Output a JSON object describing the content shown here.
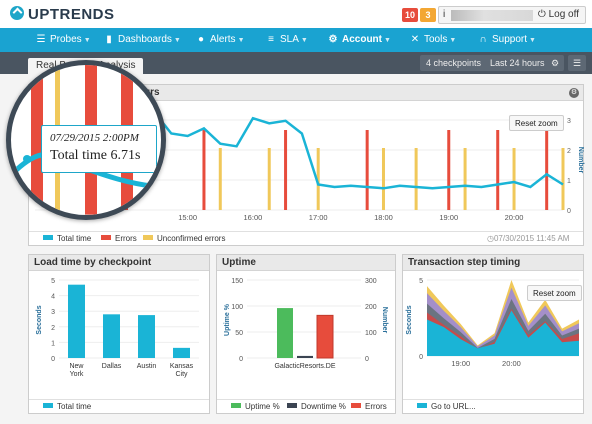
{
  "brand": {
    "name": "UPTRENDS"
  },
  "header": {
    "badge_red": "10",
    "badge_yellow": "3",
    "user_initial": "i",
    "logoff_label": "Log off"
  },
  "nav": [
    {
      "label": "Probes",
      "icon": "probes-icon"
    },
    {
      "label": "Dashboards",
      "icon": "dashboards-icon"
    },
    {
      "label": "Alerts",
      "icon": "alerts-icon"
    },
    {
      "label": "SLA",
      "icon": "sla-icon"
    },
    {
      "label": "Account",
      "icon": "account-icon"
    },
    {
      "label": "Tools",
      "icon": "tools-icon"
    },
    {
      "label": "Support",
      "icon": "support-icon"
    }
  ],
  "tabbar": {
    "tab": "Real Browser Analysis",
    "checkpoints": "4 checkpoints",
    "period": "Last 24 hours"
  },
  "main_panel": {
    "title": "Performance last 24 hours",
    "reset_zoom": "Reset zoom",
    "timestamp": "07/30/2015 11:45 AM",
    "legend": [
      "Total time",
      "Errors",
      "Unconfirmed errors"
    ]
  },
  "magnifier": {
    "date": "07/29/2015 2:00PM",
    "value": "Total time 6.71s"
  },
  "load_panel": {
    "title": "Load time by checkpoint",
    "legend": "Total time"
  },
  "uptime_panel": {
    "title": "Uptime",
    "legend": [
      "Uptime %",
      "Downtime %",
      "Errors"
    ]
  },
  "tx_panel": {
    "title": "Transaction step timing",
    "reset_zoom": "Reset zoom",
    "legend": [
      "Go to URL",
      "..."
    ]
  },
  "colors": {
    "nav": "#1aa3d1",
    "total_time": "#1ab4d6",
    "error": "#e74c3c",
    "unconfirmed": "#f0c85a",
    "uptime": "#4cbb5c",
    "downtime": "#3b4452"
  },
  "chart_data": [
    {
      "type": "line",
      "title": "Performance last 24 hours",
      "x": [
        "14:30",
        "14:45",
        "15:00",
        "15:15",
        "15:30",
        "15:45",
        "16:00",
        "16:15",
        "16:30",
        "16:45",
        "17:00",
        "17:15",
        "17:30",
        "17:45",
        "18:00",
        "18:15",
        "18:30",
        "18:45",
        "19:00",
        "19:15",
        "19:30",
        "19:45",
        "20:00",
        "20:15",
        "20:30",
        "20:45"
      ],
      "xticks": [
        "15:00",
        "16:00",
        "17:00",
        "18:00",
        "19:00",
        "20:00"
      ],
      "series": [
        {
          "name": "Total time",
          "values": [
            3.8,
            3.0,
            2.9,
            3.2,
            2.6,
            2.5,
            3.6,
            3.4,
            3.5,
            3.0,
            1.0,
            0.9,
            0.95,
            0.9,
            0.85,
            0.95,
            0.9,
            0.85,
            0.9,
            0.95,
            0.9,
            1.0,
            1.1,
            0.9,
            1.4,
            1.0
          ]
        }
      ],
      "error_bars": [
        "15:15",
        "16:30",
        "17:45",
        "19:00",
        "19:45",
        "20:30"
      ],
      "unconfirmed_bars": [
        "15:30",
        "16:15",
        "17:00",
        "18:00",
        "18:30",
        "19:15",
        "20:00",
        "20:45"
      ],
      "secondary_yticks": [
        "0",
        "1",
        "2",
        "3"
      ],
      "secondary_ylabel": "Number"
    },
    {
      "type": "bar",
      "title": "Load time by checkpoint",
      "categories": [
        "New York",
        "Dallas",
        "Austin",
        "Kansas City"
      ],
      "values": [
        4.7,
        2.8,
        2.75,
        0.65
      ],
      "ylabel": "Seconds",
      "ylim": [
        0,
        5
      ],
      "yticks": [
        "0",
        "1",
        "2",
        "3",
        "4",
        "5"
      ]
    },
    {
      "type": "bar",
      "title": "Uptime",
      "categories": [
        "GalacticResorts.DE"
      ],
      "series": [
        {
          "name": "Uptime %",
          "values": [
            96
          ]
        },
        {
          "name": "Downtime %",
          "values": [
            4
          ]
        },
        {
          "name": "Errors",
          "values": [
            164
          ]
        }
      ],
      "ylabel": "Uptime %",
      "ylim": [
        0,
        150
      ],
      "yticks": [
        "0",
        "50",
        "100",
        "150"
      ],
      "y2label": "Number",
      "y2lim": [
        0,
        300
      ],
      "y2ticks": [
        "0",
        "100",
        "200",
        "300"
      ]
    },
    {
      "type": "area",
      "title": "Transaction step timing",
      "x": [
        "18:20",
        "18:40",
        "19:00",
        "19:20",
        "19:40",
        "20:00",
        "20:10",
        "20:20",
        "20:30",
        "20:40"
      ],
      "xticks": [
        "19:00",
        "20:00"
      ],
      "series": [
        {
          "name": "Go to URL",
          "values": [
            2.4,
            1.9,
            1.1,
            0.5,
            0.8,
            3.0,
            1.2,
            2.2,
            0.9,
            1.0
          ]
        }
      ],
      "total": [
        4.6,
        3.3,
        2.1,
        0.7,
        1.5,
        5.0,
        2.2,
        3.7,
        1.8,
        2.4
      ],
      "ylabel": "Seconds",
      "ylim": [
        0,
        5
      ],
      "yticks": [
        "0",
        "5"
      ]
    }
  ]
}
